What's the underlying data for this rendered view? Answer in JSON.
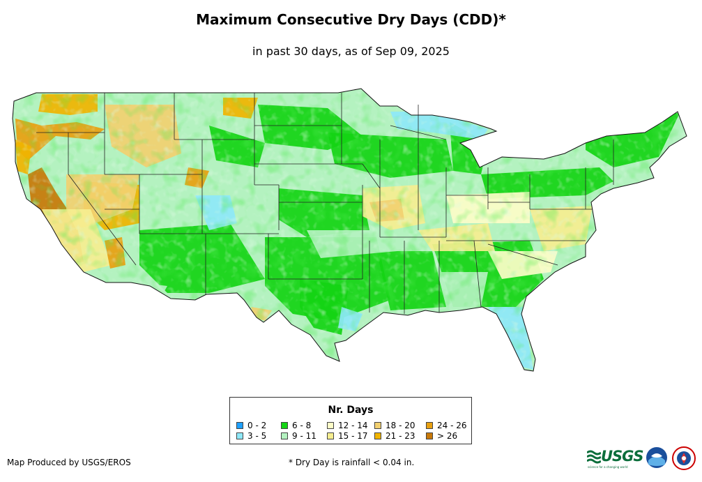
{
  "title": "Maximum Consecutive Dry Days (CDD)*",
  "subtitle": "in past 30 days, as of Sep 09, 2025",
  "legend": {
    "title": "Nr. Days",
    "items": [
      {
        "label": "0 - 2",
        "color": "#1ea0ff"
      },
      {
        "label": "3 - 5",
        "color": "#8ee8f8"
      },
      {
        "label": "6 - 8",
        "color": "#14d414"
      },
      {
        "label": "9 - 11",
        "color": "#b4f2c0"
      },
      {
        "label": "12 - 14",
        "color": "#fdfdc8"
      },
      {
        "label": "15 - 17",
        "color": "#f6ee90"
      },
      {
        "label": "18 - 20",
        "color": "#f2d070"
      },
      {
        "label": "21 - 23",
        "color": "#f0b400"
      },
      {
        "label": "24 - 26",
        "color": "#e8a010"
      },
      {
        "label": "> 26",
        "color": "#c87808"
      }
    ]
  },
  "credit": "Map Produced by USGS/EROS",
  "footnote": "* Dry Day is rainfall < 0.04 in.",
  "logos": {
    "usgs": "USGS",
    "usgs_tagline": "science for a changing world",
    "noaa": "noaa-logo",
    "nws": "nws-logo"
  }
}
